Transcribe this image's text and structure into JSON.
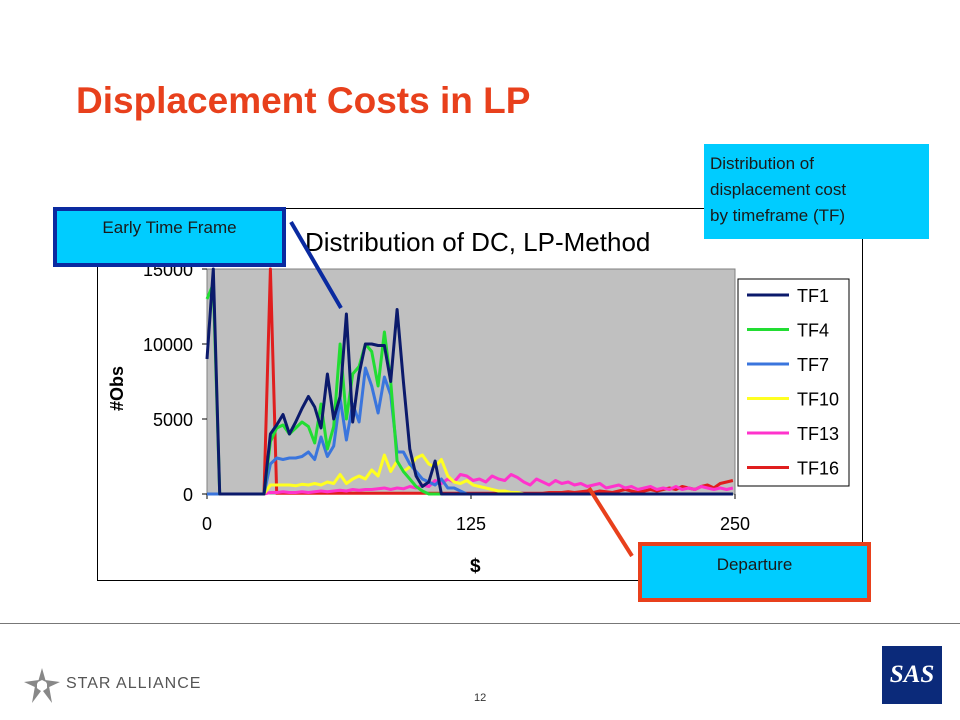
{
  "slide": {
    "title": "Displacement Costs in LP",
    "page_number": "12"
  },
  "callouts": {
    "early": "Early Time Frame",
    "distribution_lines": [
      "Distribution of",
      "displacement cost",
      "by timeframe (TF)"
    ],
    "departure": "Departure"
  },
  "footer": {
    "star_alliance": "STAR ALLIANCE",
    "sas": "SAS"
  },
  "chart_data": {
    "type": "line",
    "title": "Distribution of DC, LP-Method",
    "xlabel": "$",
    "ylabel": "#Obs",
    "xlim": [
      0,
      250
    ],
    "ylim": [
      0,
      15000
    ],
    "x_ticks": [
      "0",
      "125",
      "250"
    ],
    "y_ticks": [
      "0",
      "5000",
      "10000",
      "15000"
    ],
    "legend_position": "right",
    "grid": false,
    "x": [
      0,
      3,
      6,
      9,
      12,
      15,
      18,
      21,
      24,
      27,
      30,
      33,
      36,
      39,
      42,
      45,
      48,
      51,
      54,
      57,
      60,
      63,
      66,
      69,
      72,
      75,
      78,
      81,
      84,
      87,
      90,
      93,
      96,
      99,
      102,
      105,
      108,
      111,
      114,
      117,
      120,
      123,
      126,
      129,
      132,
      135,
      138,
      141,
      144,
      147,
      150,
      153,
      156,
      159,
      162,
      165,
      168,
      171,
      174,
      177,
      180,
      183,
      186,
      189,
      192,
      195,
      198,
      201,
      204,
      207,
      210,
      213,
      216,
      219,
      222,
      225,
      228,
      231,
      234,
      237,
      240,
      243,
      246,
      249
    ],
    "series": [
      {
        "name": "TF1",
        "color": "#0b1a6b",
        "values": [
          9000,
          15000,
          0,
          0,
          0,
          0,
          0,
          0,
          0,
          0,
          4000,
          4600,
          5300,
          4000,
          4800,
          5700,
          6500,
          5800,
          4400,
          8000,
          5000,
          6500,
          12000,
          4800,
          8000,
          10000,
          10000,
          9900,
          9900,
          7500,
          12300,
          7500,
          3000,
          1200,
          500,
          800,
          2200,
          0,
          0,
          0,
          0,
          0,
          0,
          0,
          0,
          0,
          0,
          0,
          0,
          0,
          0,
          0,
          0,
          0,
          0,
          0,
          0,
          0,
          0,
          0,
          0,
          0,
          0,
          0,
          0,
          0,
          0,
          0,
          0,
          0,
          0,
          0,
          0,
          0,
          0,
          0,
          0,
          0,
          0,
          0,
          0,
          0,
          0,
          0
        ]
      },
      {
        "name": "TF4",
        "color": "#22dd33",
        "values": [
          13000,
          14000,
          0,
          0,
          0,
          0,
          0,
          0,
          0,
          0,
          3500,
          4400,
          4600,
          4000,
          4400,
          4800,
          4500,
          3400,
          6000,
          3000,
          4500,
          10000,
          5000,
          8000,
          8500,
          10000,
          9500,
          7200,
          10800,
          7500,
          2200,
          1500,
          1000,
          500,
          200,
          0,
          0,
          0,
          0,
          0,
          0,
          0,
          0,
          0,
          0,
          0,
          0,
          0,
          0,
          0,
          0,
          0,
          0,
          0,
          0,
          0,
          0,
          0,
          0,
          0,
          0,
          0,
          0,
          0,
          0,
          0,
          0,
          0,
          0,
          0,
          0,
          0,
          0,
          0,
          0,
          0,
          0,
          0,
          0,
          0,
          0,
          0,
          0,
          0
        ]
      },
      {
        "name": "TF7",
        "color": "#3a75dd",
        "values": [
          0,
          0,
          0,
          0,
          0,
          0,
          0,
          0,
          0,
          0,
          2000,
          2400,
          2300,
          2400,
          2400,
          2500,
          2800,
          2300,
          3800,
          2500,
          3200,
          6400,
          3600,
          6000,
          4800,
          8400,
          7200,
          5400,
          7800,
          6600,
          2800,
          2800,
          2000,
          1500,
          1000,
          800,
          600,
          1000,
          400,
          400,
          200,
          0,
          0,
          0,
          0,
          0,
          0,
          0,
          0,
          0,
          0,
          0,
          0,
          0,
          0,
          0,
          0,
          0,
          0,
          0,
          0,
          0,
          0,
          0,
          0,
          0,
          0,
          0,
          0,
          0,
          0,
          0,
          0,
          0,
          0,
          0,
          0,
          0,
          0,
          0,
          0,
          0,
          0,
          0
        ]
      },
      {
        "name": "TF10",
        "color": "#ffff22",
        "values": [
          0,
          0,
          0,
          0,
          0,
          0,
          0,
          0,
          0,
          0,
          600,
          600,
          600,
          600,
          550,
          650,
          600,
          700,
          600,
          800,
          700,
          1300,
          700,
          1000,
          1200,
          1000,
          1600,
          1200,
          2600,
          1500,
          2200,
          1500,
          1800,
          2400,
          2600,
          2000,
          1800,
          2300,
          1200,
          800,
          700,
          900,
          600,
          500,
          400,
          300,
          200,
          200,
          100,
          100,
          0,
          0,
          0,
          0,
          0,
          0,
          0,
          0,
          0,
          0,
          0,
          0,
          0,
          0,
          0,
          0,
          0,
          0,
          0,
          0,
          0,
          0,
          0,
          0,
          0,
          0,
          0,
          0,
          0,
          0,
          0,
          0,
          0,
          0
        ]
      },
      {
        "name": "TF13",
        "color": "#ff33cc",
        "values": [
          0,
          0,
          0,
          0,
          0,
          0,
          0,
          0,
          0,
          0,
          100,
          100,
          150,
          100,
          100,
          150,
          100,
          150,
          200,
          150,
          200,
          250,
          200,
          300,
          250,
          300,
          300,
          350,
          400,
          300,
          400,
          350,
          500,
          400,
          600,
          500,
          900,
          700,
          1000,
          800,
          1300,
          1200,
          900,
          1000,
          800,
          1200,
          1000,
          900,
          1300,
          1100,
          800,
          600,
          1000,
          800,
          600,
          900,
          700,
          800,
          600,
          700,
          500,
          600,
          700,
          400,
          500,
          600,
          400,
          500,
          300,
          400,
          500,
          300,
          400,
          300,
          500,
          300,
          400,
          300,
          500,
          400,
          300,
          400,
          300,
          400
        ]
      },
      {
        "name": "TF16",
        "color": "#e01e1e",
        "values": [
          0,
          0,
          0,
          0,
          0,
          0,
          0,
          0,
          0,
          0,
          15000,
          50,
          50,
          50,
          50,
          50,
          50,
          50,
          50,
          50,
          50,
          50,
          50,
          50,
          50,
          50,
          50,
          50,
          50,
          50,
          50,
          50,
          50,
          50,
          50,
          50,
          50,
          50,
          50,
          50,
          50,
          50,
          50,
          50,
          50,
          50,
          50,
          50,
          50,
          50,
          50,
          50,
          50,
          50,
          100,
          100,
          100,
          150,
          100,
          150,
          200,
          100,
          200,
          150,
          100,
          200,
          300,
          200,
          100,
          200,
          300,
          200,
          300,
          400,
          300,
          500,
          400,
          300,
          500,
          600,
          400,
          700,
          800,
          900
        ]
      }
    ]
  }
}
